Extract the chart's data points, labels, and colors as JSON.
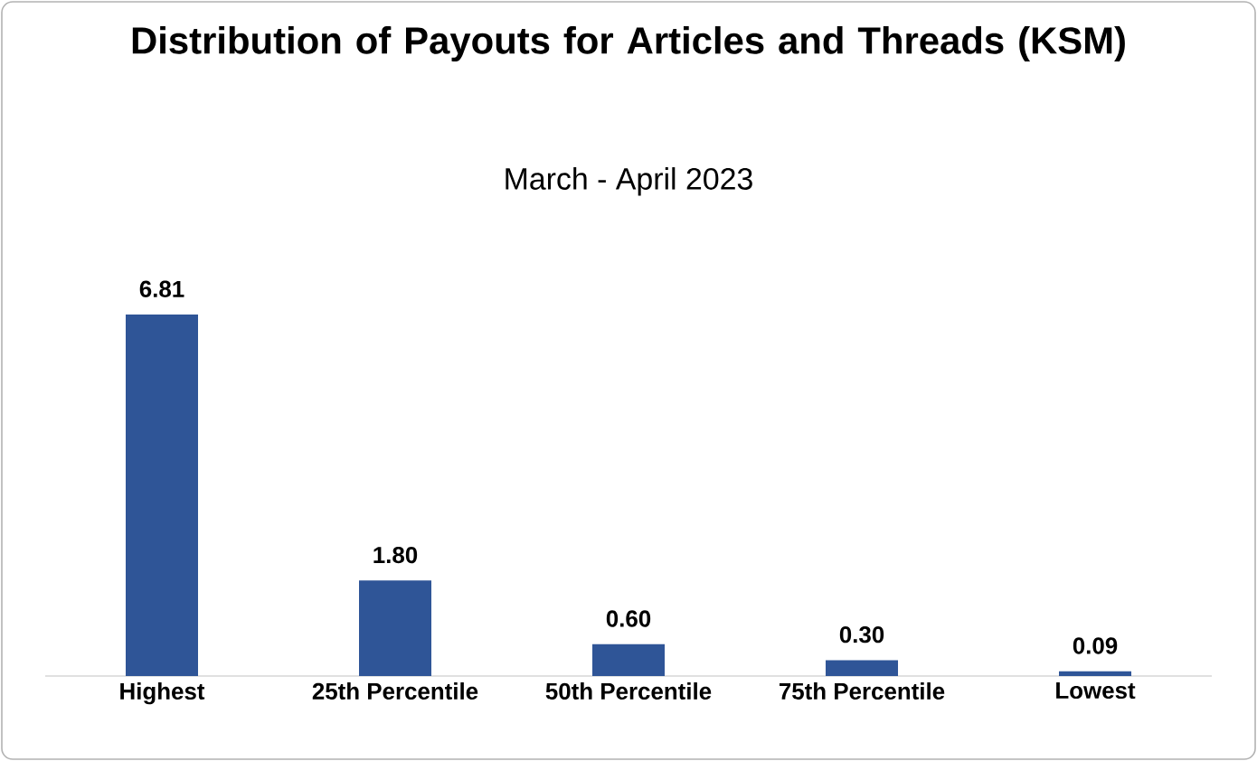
{
  "chart_data": {
    "type": "bar",
    "title": "Distribution of Payouts for Articles and Threads (KSM)",
    "subtitle": "March - April 2023",
    "categories": [
      "Highest",
      "25th Percentile",
      "50th Percentile",
      "75th Percentile",
      "Lowest"
    ],
    "values": [
      6.81,
      1.8,
      0.6,
      0.3,
      0.09
    ],
    "value_labels": [
      "6.81",
      "1.80",
      "0.60",
      "0.30",
      "0.09"
    ],
    "color": "#2f5597"
  }
}
